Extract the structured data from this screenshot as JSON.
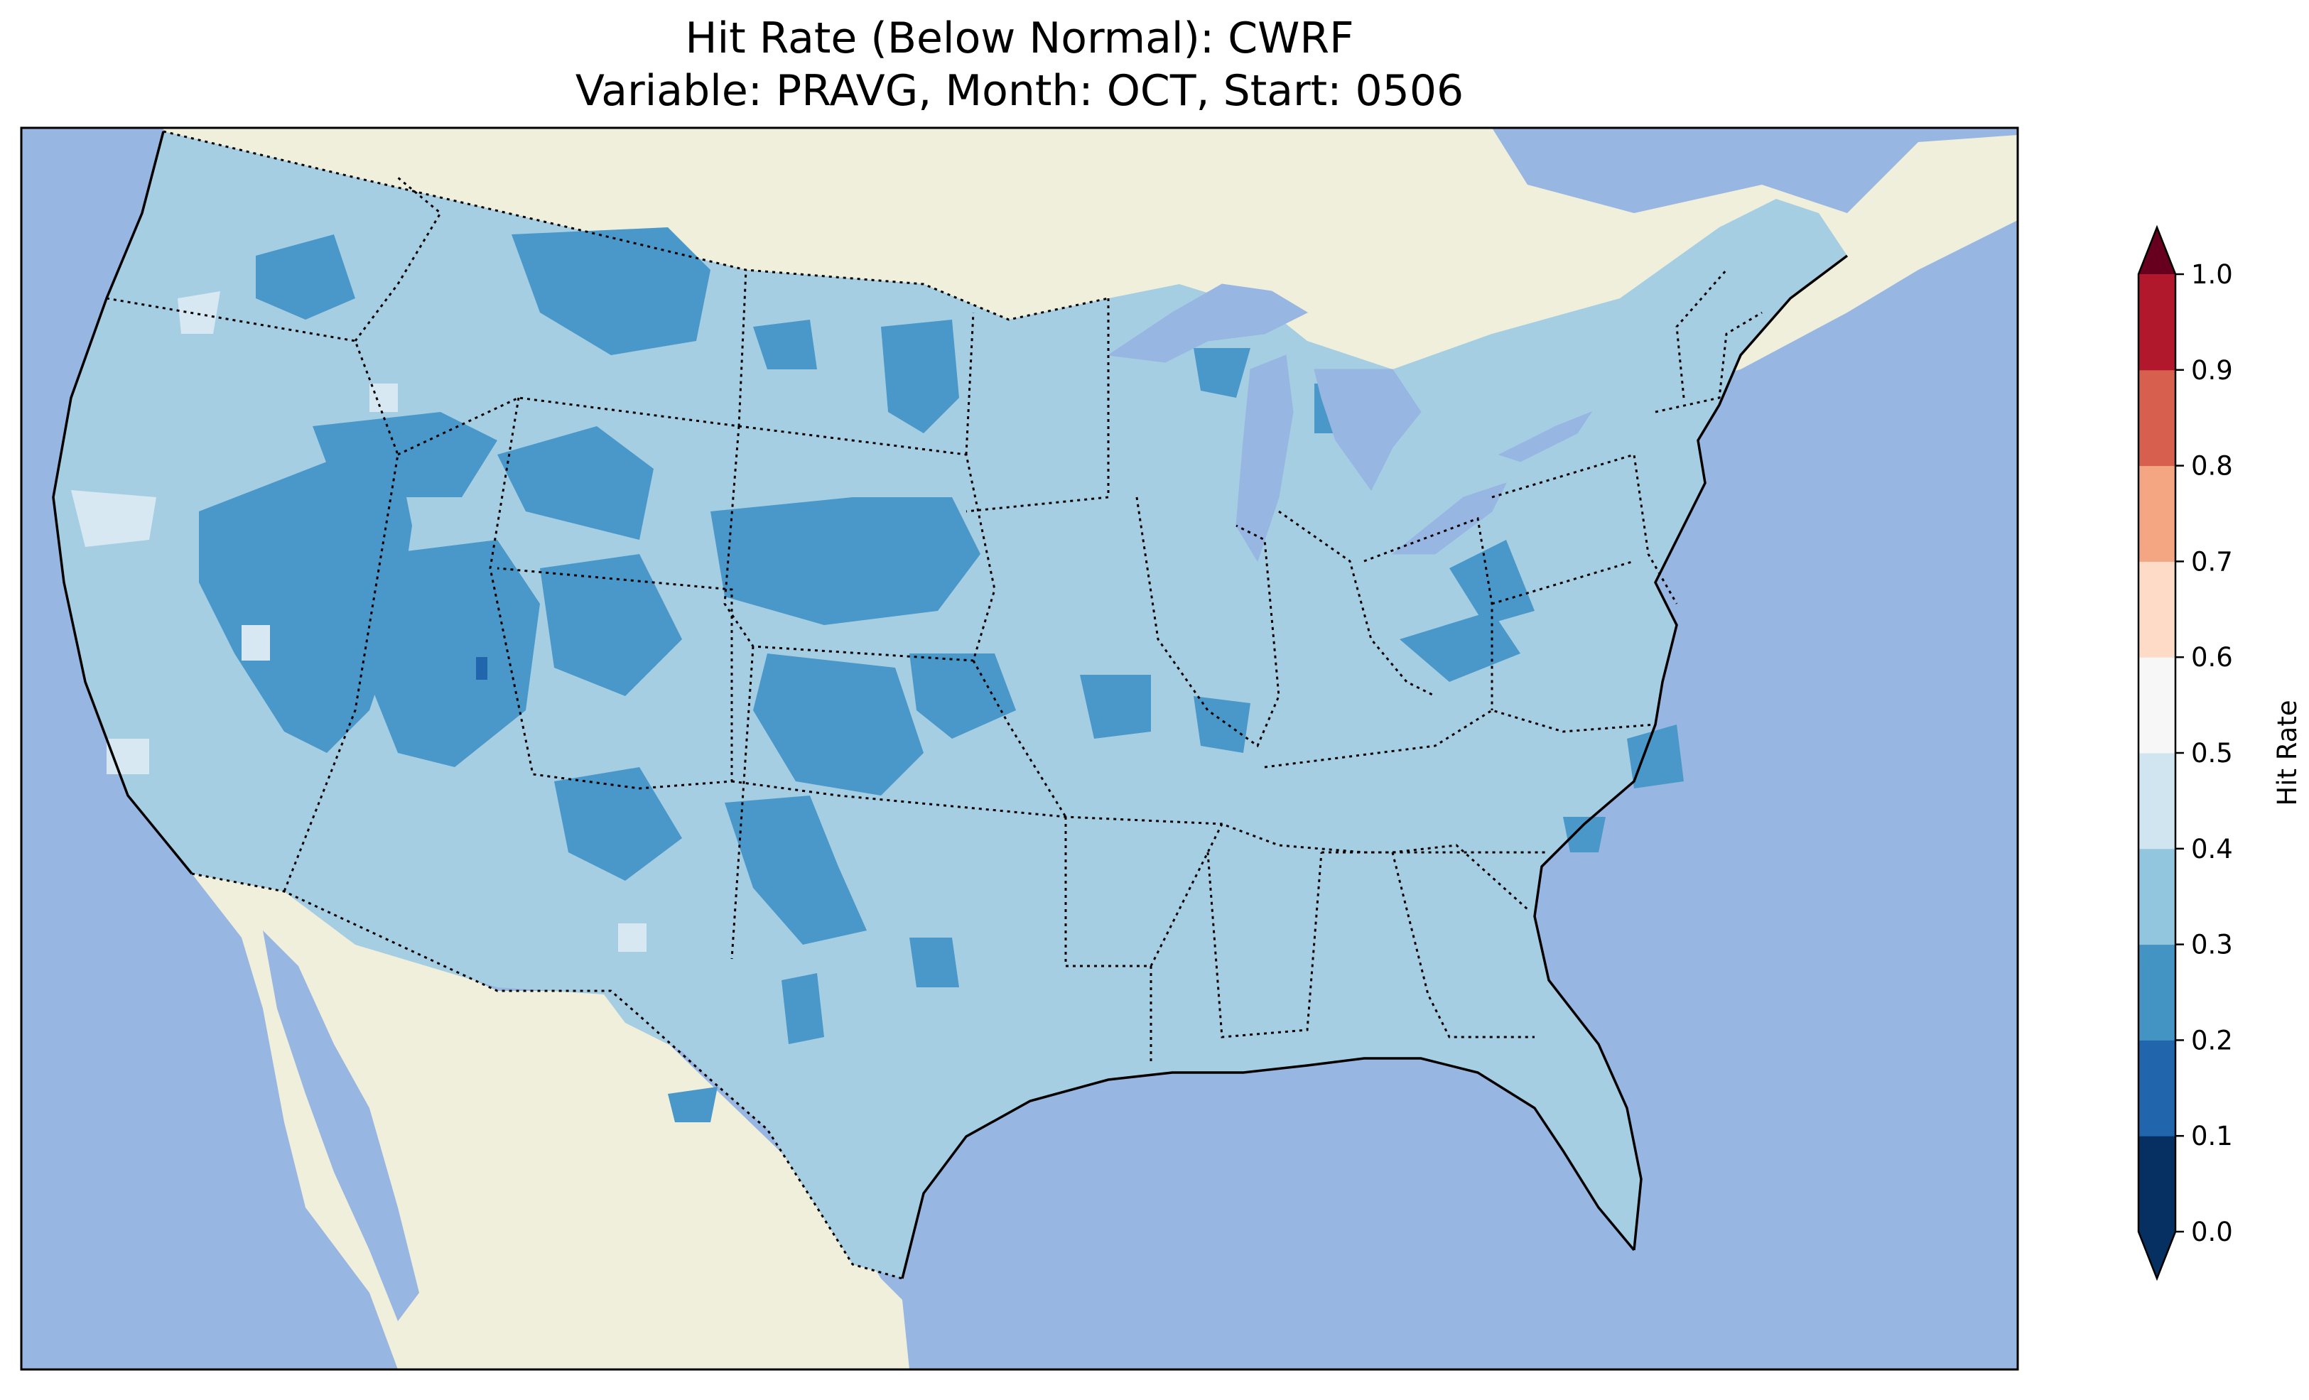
{
  "title": {
    "line1": "Hit Rate (Below Normal): CWRF",
    "line2": "Variable: PRAVG, Month: OCT, Start: 0506"
  },
  "colorbar": {
    "label": "Hit Rate",
    "ticks": [
      "0.0",
      "0.1",
      "0.2",
      "0.3",
      "0.4",
      "0.5",
      "0.6",
      "0.7",
      "0.8",
      "0.9",
      "1.0"
    ],
    "levels": [
      0.0,
      0.1,
      0.2,
      0.3,
      0.4,
      0.5,
      0.6,
      0.7,
      0.8,
      0.9,
      1.0
    ],
    "colors": [
      "#053061",
      "#2166ac",
      "#4393c3",
      "#92c5de",
      "#d1e5f0",
      "#f7f7f7",
      "#fddbc7",
      "#f4a582",
      "#d6604d",
      "#b2182b"
    ],
    "under_color": "#053061",
    "over_color": "#67001f",
    "extend": "both"
  },
  "map": {
    "ocean_color": "#97b6e1",
    "land_color": "#efefdb",
    "lake_color": "#97b6e1",
    "dominant_class": "0.3-0.4",
    "class_colors": {
      "0.1-0.2": "#2166ac",
      "0.2-0.3": "#4a98c9",
      "0.3-0.4": "#a6cee3",
      "0.4-0.5": "#d8e8f2"
    }
  }
}
